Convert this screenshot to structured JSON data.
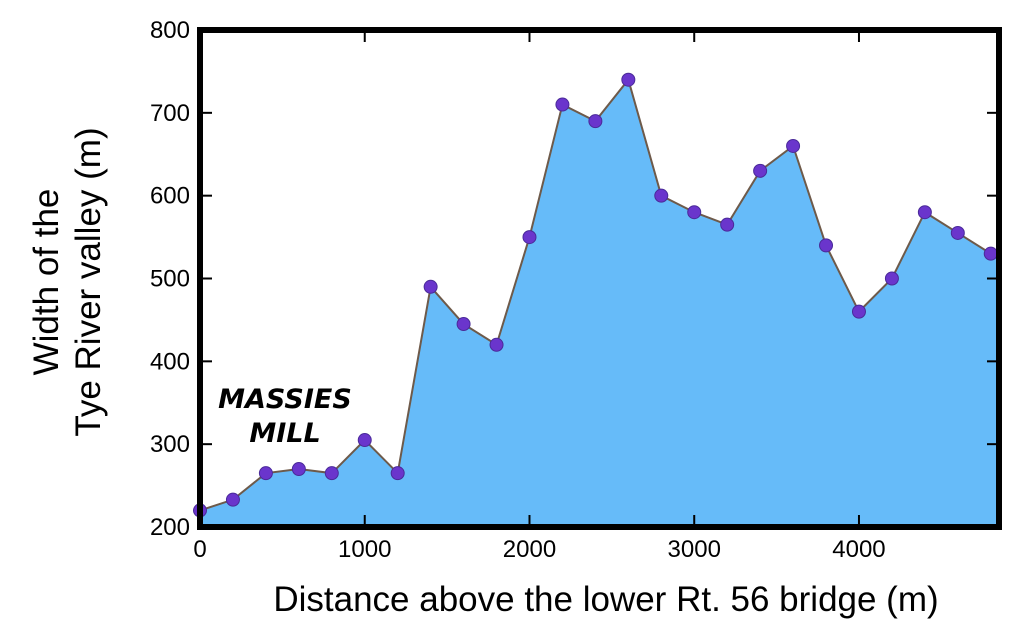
{
  "chart_data": {
    "type": "area",
    "xlabel": "Distance above the lower Rt. 56 bridge (m)",
    "ylabel_line1": "Width of the",
    "ylabel_line2": "Tye River valley (m)",
    "annotation_line1": "MASSIES",
    "annotation_line2": "MILL",
    "xlim": [
      0,
      4850
    ],
    "ylim": [
      200,
      800
    ],
    "x_ticks": [
      0,
      1000,
      2000,
      3000,
      4000
    ],
    "x_tick_labels": [
      "0",
      "1000",
      "2000",
      "3000",
      "4000"
    ],
    "y_ticks": [
      200,
      300,
      400,
      500,
      600,
      700,
      800
    ],
    "y_tick_labels": [
      "200",
      "300",
      "400",
      "500",
      "600",
      "700",
      "800"
    ],
    "grid": false,
    "fill_color": "#66bbf9",
    "line_color": "#6e5a4a",
    "marker_color": "#6a35cc",
    "points": [
      {
        "x": 0,
        "y": 220
      },
      {
        "x": 200,
        "y": 233
      },
      {
        "x": 400,
        "y": 265
      },
      {
        "x": 600,
        "y": 270
      },
      {
        "x": 800,
        "y": 265
      },
      {
        "x": 1000,
        "y": 305
      },
      {
        "x": 1200,
        "y": 265
      },
      {
        "x": 1400,
        "y": 490
      },
      {
        "x": 1600,
        "y": 445
      },
      {
        "x": 1800,
        "y": 420
      },
      {
        "x": 2000,
        "y": 550
      },
      {
        "x": 2200,
        "y": 710
      },
      {
        "x": 2400,
        "y": 690
      },
      {
        "x": 2600,
        "y": 740
      },
      {
        "x": 2800,
        "y": 600
      },
      {
        "x": 3000,
        "y": 580
      },
      {
        "x": 3200,
        "y": 565
      },
      {
        "x": 3400,
        "y": 630
      },
      {
        "x": 3600,
        "y": 660
      },
      {
        "x": 3800,
        "y": 540
      },
      {
        "x": 4000,
        "y": 460
      },
      {
        "x": 4200,
        "y": 500
      },
      {
        "x": 4400,
        "y": 580
      },
      {
        "x": 4600,
        "y": 555
      },
      {
        "x": 4800,
        "y": 530
      }
    ]
  }
}
